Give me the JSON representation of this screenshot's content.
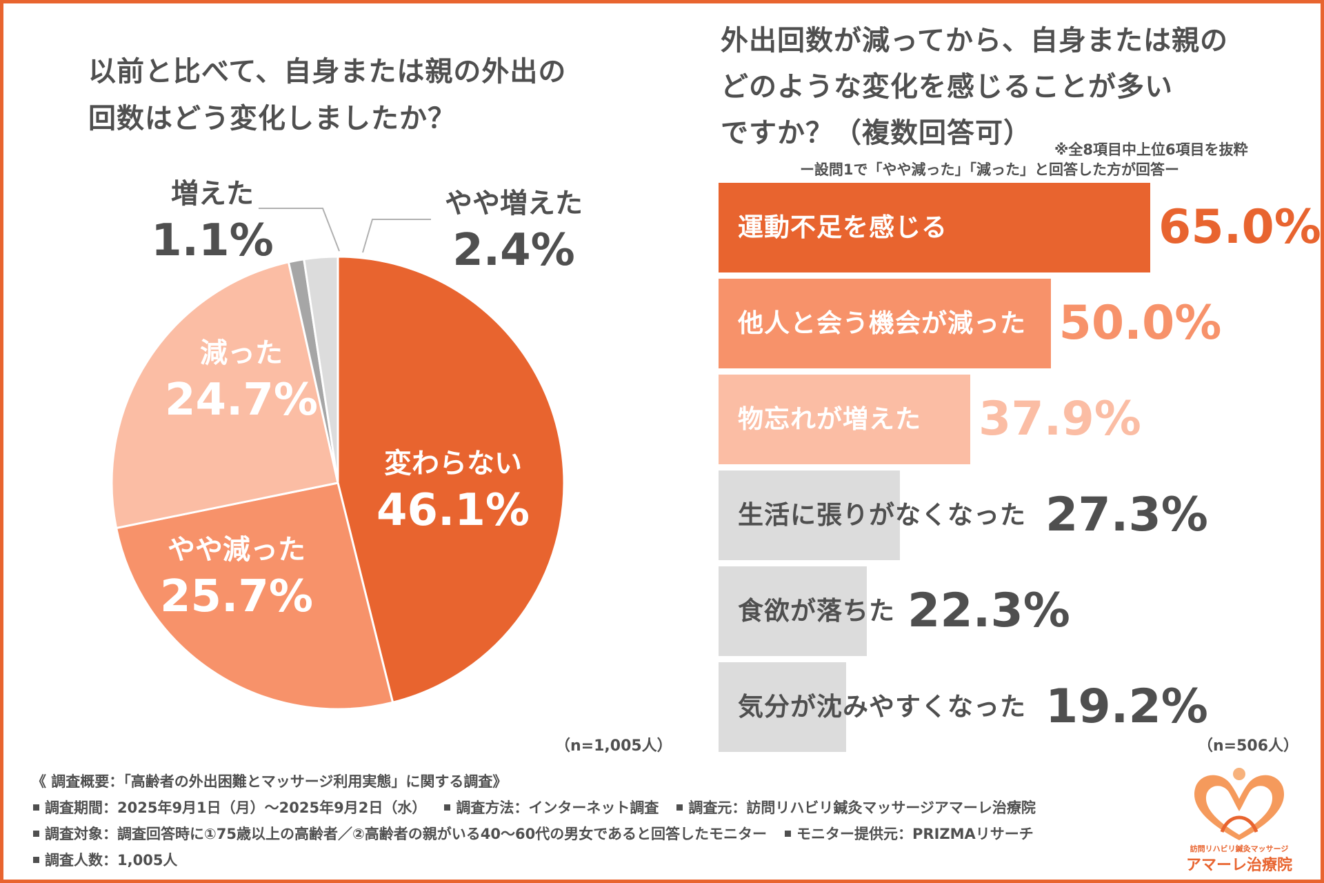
{
  "pie": {
    "title_line1": "以前と比べて、自身または親の外出の",
    "title_line2": "回数はどう変化しましたか？",
    "n_label": "（n=1,005人）"
  },
  "bar": {
    "title_line1": "外出回数が減ってから、自身または親の",
    "title_line2": "どのような変化を感じることが多い",
    "title_line3": "ですか？（複数回答可）",
    "note": "※全8項目中上位6項目を抜粋",
    "subtitle": "ー設問1で「やや減った」「減った」と回答した方が回答ー",
    "n_label": "（n=506人）"
  },
  "chart_data": [
    {
      "type": "pie",
      "title": "以前と比べて、自身または親の外出の回数はどう変化しましたか？",
      "slices": [
        {
          "label": "変わらない",
          "value": 46.1,
          "pct_text": "46.1%",
          "color": "#e8642f"
        },
        {
          "label": "やや減った",
          "value": 25.7,
          "pct_text": "25.7%",
          "color": "#f7926a"
        },
        {
          "label": "減った",
          "value": 24.7,
          "pct_text": "24.7%",
          "color": "#fbbda4"
        },
        {
          "label": "増えた",
          "value": 1.1,
          "pct_text": "1.1%",
          "color": "#a6a6a6"
        },
        {
          "label": "やや増えた",
          "value": 2.4,
          "pct_text": "2.4%",
          "color": "#dcdcdc"
        }
      ],
      "n": "n=1,005人"
    },
    {
      "type": "bar",
      "orientation": "horizontal",
      "title": "外出回数が減ってから、自身または親のどのような変化を感じることが多いですか？（複数回答可）",
      "categories": [
        "運動不足を感じる",
        "他人と会う機会が減った",
        "物忘れが増えた",
        "生活に張りがなくなった",
        "食欲が落ちた",
        "気分が沈みやすくなった"
      ],
      "values": [
        65.0,
        50.0,
        37.9,
        27.3,
        22.3,
        19.2
      ],
      "value_texts": [
        "65.0%",
        "50.0%",
        "37.9%",
        "27.3%",
        "22.3%",
        "19.2%"
      ],
      "bar_colors": [
        "#e8642f",
        "#f7926a",
        "#fbbda4",
        "#dcdcdc",
        "#dcdcdc",
        "#dcdcdc"
      ],
      "label_colors": [
        "#ffffff",
        "#ffffff",
        "#ffffff",
        "#4f4f4f",
        "#4f4f4f",
        "#4f4f4f"
      ],
      "value_colors": [
        "#e8642f",
        "#f7926a",
        "#fbbda4",
        "#4f4f4f",
        "#4f4f4f",
        "#4f4f4f"
      ],
      "xlim": [
        0,
        65
      ],
      "n": "n=506人"
    }
  ],
  "footer": {
    "survey_title": "《 調査概要：「高齢者の外出困難とマッサージ利用実態」に関する調査》",
    "period": "調査期間：2025年9月1日（月）〜2025年9月2日（水）",
    "method": "調査方法：インターネット調査",
    "organizer": "調査元：訪問リハビリ鍼灸マッサージアマーレ治療院",
    "target": "調査対象：調査回答時に①75歳以上の高齢者／②高齢者の親がいる40〜60代の男女であると回答したモニター",
    "provider": "モニター提供元：PRIZMAリサーチ",
    "count": "調査人数：1,005人"
  },
  "logo": {
    "sub": "訪問リハビリ鍼灸マッサージ",
    "main": "アマーレ治療院"
  },
  "colors": {
    "accent": "#e8642f",
    "text": "#4f4f4f"
  }
}
